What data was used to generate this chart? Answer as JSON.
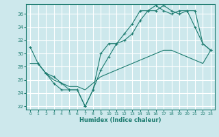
{
  "xlabel": "Humidex (Indice chaleur)",
  "ylabel": "",
  "background_color": "#cde8ec",
  "grid_color": "#ffffff",
  "line_color": "#1a7a6e",
  "xlim": [
    -0.5,
    23.5
  ],
  "ylim": [
    21.5,
    37.5
  ],
  "yticks": [
    22,
    24,
    26,
    28,
    30,
    32,
    34,
    36
  ],
  "xticks": [
    0,
    1,
    2,
    3,
    4,
    5,
    6,
    7,
    8,
    9,
    10,
    11,
    12,
    13,
    14,
    15,
    16,
    17,
    18,
    19,
    20,
    21,
    22,
    23
  ],
  "line1_x": [
    0,
    1,
    2,
    3,
    4,
    5,
    6,
    7,
    8,
    9,
    10,
    11,
    12,
    13,
    14,
    15,
    16,
    17,
    18,
    19,
    20,
    21,
    22,
    23
  ],
  "line1_y": [
    31.0,
    28.5,
    27.0,
    25.5,
    24.5,
    24.5,
    24.5,
    22.0,
    24.5,
    27.5,
    29.5,
    31.5,
    33.0,
    34.5,
    36.5,
    36.5,
    37.3,
    36.5,
    36.0,
    36.5,
    36.5,
    34.0,
    31.5,
    30.5
  ],
  "line2_x": [
    1,
    2,
    3,
    4,
    5,
    6,
    7,
    8,
    9,
    10,
    11,
    12,
    13,
    14,
    15,
    16,
    17,
    18,
    19,
    20,
    21,
    22,
    23
  ],
  "line2_y": [
    28.5,
    27.0,
    26.5,
    25.5,
    24.5,
    24.5,
    22.0,
    24.5,
    30.0,
    31.5,
    31.5,
    32.0,
    33.0,
    35.0,
    36.5,
    36.5,
    37.3,
    36.5,
    36.0,
    36.5,
    36.5,
    31.5,
    30.5
  ],
  "line3_x": [
    0,
    1,
    2,
    3,
    4,
    5,
    6,
    7,
    8,
    9,
    10,
    11,
    12,
    13,
    14,
    15,
    16,
    17,
    18,
    19,
    20,
    21,
    22,
    23
  ],
  "line3_y": [
    28.5,
    28.5,
    27.0,
    26.0,
    25.5,
    25.0,
    25.0,
    24.5,
    25.5,
    26.5,
    27.0,
    27.5,
    28.0,
    28.5,
    29.0,
    29.5,
    30.0,
    30.5,
    30.5,
    30.0,
    29.5,
    29.0,
    28.5,
    30.5
  ]
}
